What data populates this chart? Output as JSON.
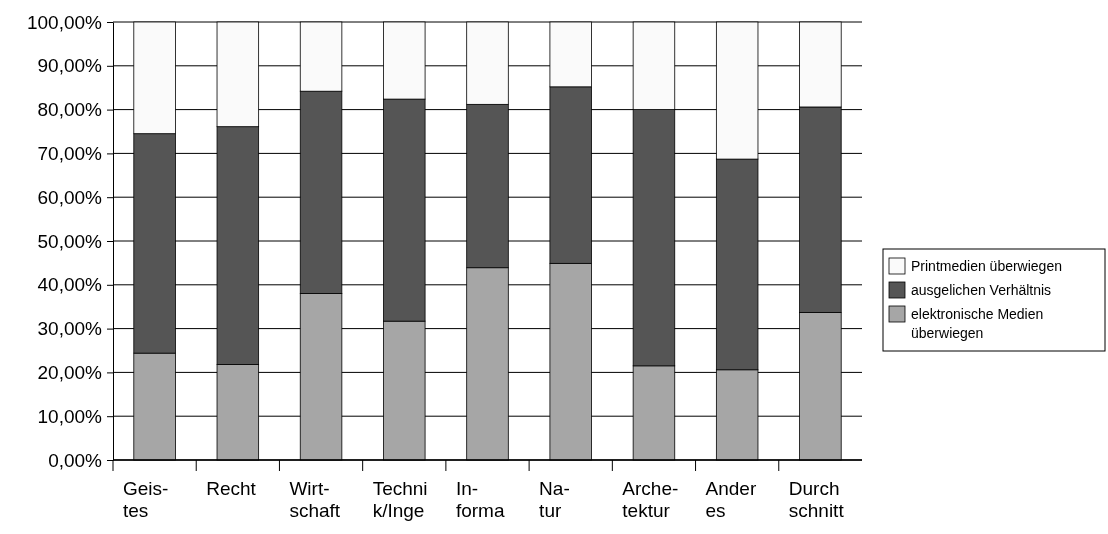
{
  "chart_data": {
    "type": "bar",
    "stacked": true,
    "categories": [
      "Geis-\ntes",
      "Recht",
      "Wirt-\nschaft",
      "Techni\nk/Inge",
      "In-\nforma",
      "Na-\ntur",
      "Arche-\ntektur",
      "Ander\nes",
      "Durch\nschnitt"
    ],
    "series": [
      {
        "name": "elektronische Medien überwiegen",
        "color": "#a6a6a6",
        "values": [
          24.4,
          21.8,
          38.0,
          31.7,
          43.9,
          44.9,
          21.5,
          20.6,
          33.7
        ]
      },
      {
        "name": "ausgelichen Verhältnis",
        "color": "#555555",
        "values": [
          50.1,
          54.3,
          46.2,
          50.7,
          37.3,
          40.3,
          58.5,
          48.1,
          46.9
        ]
      },
      {
        "name": "Printmedien überwiegen",
        "color": "#fafafa",
        "values": [
          25.5,
          23.9,
          15.8,
          17.6,
          18.8,
          14.8,
          20.0,
          31.3,
          19.4
        ]
      }
    ],
    "ylim": [
      0,
      100
    ],
    "yticks": [
      {
        "value": 0,
        "label": "0,00%"
      },
      {
        "value": 10,
        "label": "10,00%"
      },
      {
        "value": 20,
        "label": "20,00%"
      },
      {
        "value": 30,
        "label": "30,00%"
      },
      {
        "value": 40,
        "label": "40,00%"
      },
      {
        "value": 50,
        "label": "50,00%"
      },
      {
        "value": 60,
        "label": "60,00%"
      },
      {
        "value": 70,
        "label": "70,00%"
      },
      {
        "value": 80,
        "label": "80,00%"
      },
      {
        "value": 90,
        "label": "90,00%"
      },
      {
        "value": 100,
        "label": "100,00%"
      }
    ],
    "grid": "y",
    "legend": "right"
  }
}
